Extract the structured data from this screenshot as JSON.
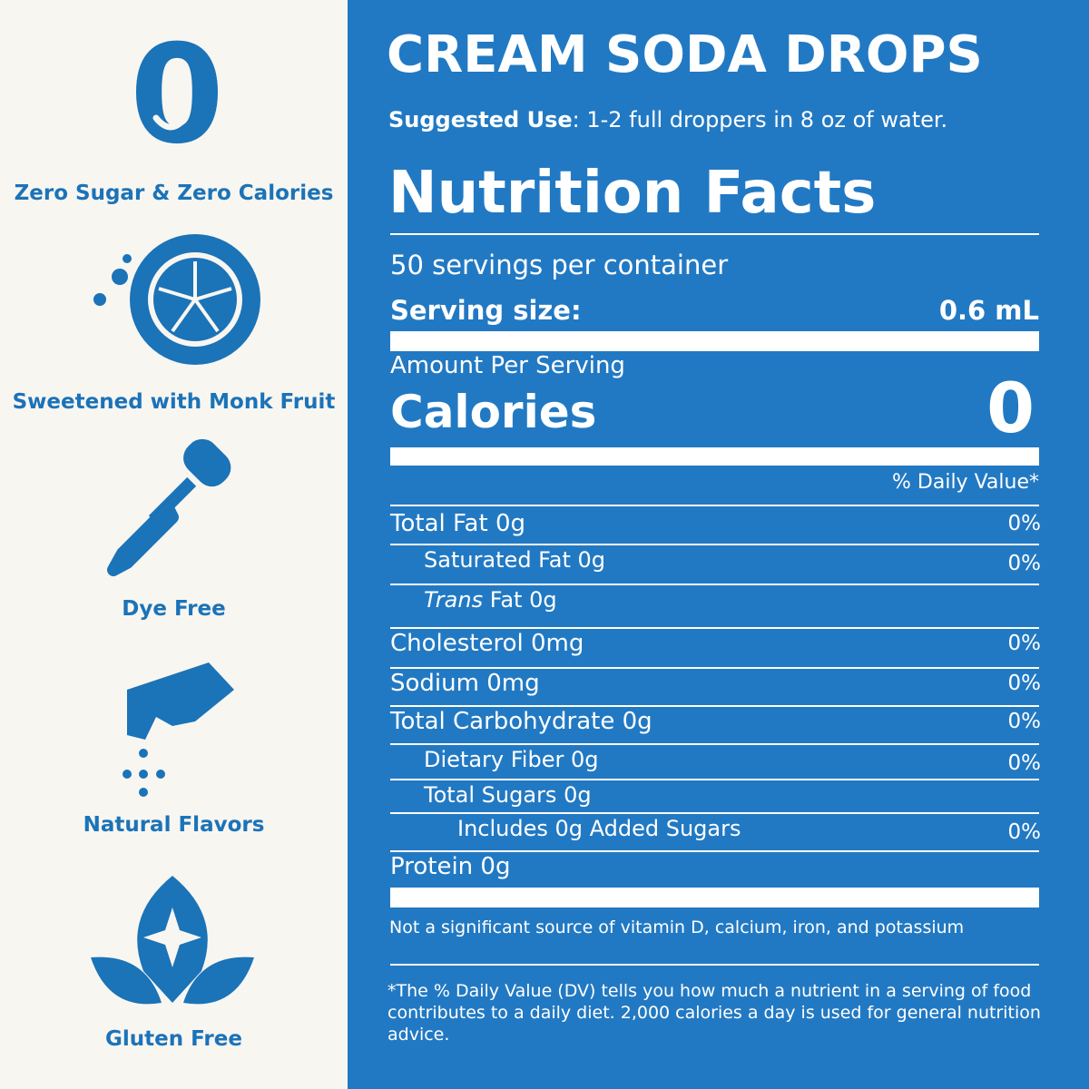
{
  "features": [
    {
      "badge": "0",
      "label": "Zero Sugar & Zero Calories"
    },
    {
      "label": "Sweetened with Monk Fruit"
    },
    {
      "label": "Dye Free"
    },
    {
      "label": "Natural Flavors"
    },
    {
      "label": "Gluten Free"
    }
  ],
  "product": {
    "title": "CREAM SODA DROPS",
    "suggested_use": {
      "label": "Suggested Use",
      "text": ": 1-2 full droppers in 8 oz of water."
    }
  },
  "nutrition": {
    "heading": "Nutrition Facts",
    "servings": "50 servings per container",
    "serving_size": {
      "label": "Serving size:",
      "value": "0.6 mL"
    },
    "amount_per_serving": "Amount Per Serving",
    "calories": {
      "label": "Calories",
      "value": "0"
    },
    "dv_header": "% Daily Value*",
    "rows": [
      {
        "name": "Total Fat 0g",
        "dv": "0%"
      },
      {
        "name": "Saturated Fat 0g",
        "dv": "0%",
        "indent": 1
      },
      {
        "name_italic": "Trans",
        "name": " Fat 0g",
        "indent": 1
      },
      {
        "name": "Cholesterol 0mg",
        "dv": "0%"
      },
      {
        "name": "Sodium 0mg",
        "dv": "0%"
      },
      {
        "name": "Total Carbohydrate 0g",
        "dv": "0%"
      },
      {
        "name": "Dietary Fiber 0g",
        "dv": "0%",
        "indent": 1
      },
      {
        "name": "Total Sugars 0g",
        "indent": 1
      },
      {
        "name": "Includes 0g Added Sugars",
        "dv": "0%",
        "indent": 2
      },
      {
        "name": "Protein 0g"
      }
    ],
    "note": "Not a significant source of vitamin D, calcium, iron, and potassium",
    "footnote": "*The % Daily Value (DV) tells you how much a nutrient in a serving of food contributes to a daily diet. 2,000 calories a day is used for general nutrition advice."
  }
}
